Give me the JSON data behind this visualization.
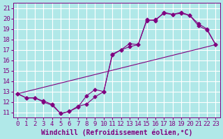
{
  "xlabel": "Windchill (Refroidissement éolien,°C)",
  "ylabel": "",
  "bg_color": "#b0e8e8",
  "line_color": "#800080",
  "xlim": [
    -0.5,
    23.5
  ],
  "ylim": [
    10.5,
    21.5
  ],
  "xticks": [
    0,
    1,
    2,
    3,
    4,
    5,
    6,
    7,
    8,
    9,
    10,
    11,
    12,
    13,
    14,
    15,
    16,
    17,
    18,
    19,
    20,
    21,
    22,
    23
  ],
  "yticks": [
    11,
    12,
    13,
    14,
    15,
    16,
    17,
    18,
    19,
    20,
    21
  ],
  "line1_x": [
    0,
    1,
    2,
    3,
    4,
    5,
    6,
    7,
    8,
    9,
    10,
    11,
    12,
    13,
    14,
    15,
    16,
    17,
    18,
    19,
    20,
    21,
    22,
    23
  ],
  "line1_y": [
    12.8,
    12.4,
    12.4,
    12.1,
    11.8,
    10.9,
    11.1,
    11.6,
    11.8,
    12.5,
    13.0,
    16.5,
    17.0,
    17.6,
    17.5,
    19.8,
    19.9,
    20.5,
    20.4,
    20.6,
    20.3,
    19.3,
    18.9,
    17.5
  ],
  "line2_x": [
    0,
    1,
    2,
    3,
    4,
    5,
    6,
    7,
    8,
    9,
    10,
    11,
    12,
    13,
    14,
    15,
    16,
    17,
    18,
    19,
    20,
    21,
    22,
    23
  ],
  "line2_y": [
    12.8,
    12.4,
    12.4,
    12.0,
    11.7,
    10.9,
    11.1,
    11.5,
    12.6,
    13.2,
    13.0,
    16.6,
    17.0,
    17.3,
    17.5,
    19.9,
    19.8,
    20.6,
    20.4,
    20.5,
    20.3,
    19.5,
    19.0,
    17.5
  ],
  "line3_x": [
    0,
    23
  ],
  "line3_y": [
    12.8,
    17.5
  ],
  "grid_color": "#ffffff",
  "xlabel_fontsize": 7,
  "tick_fontsize": 6.5,
  "marker": "D",
  "markersize": 2.5
}
